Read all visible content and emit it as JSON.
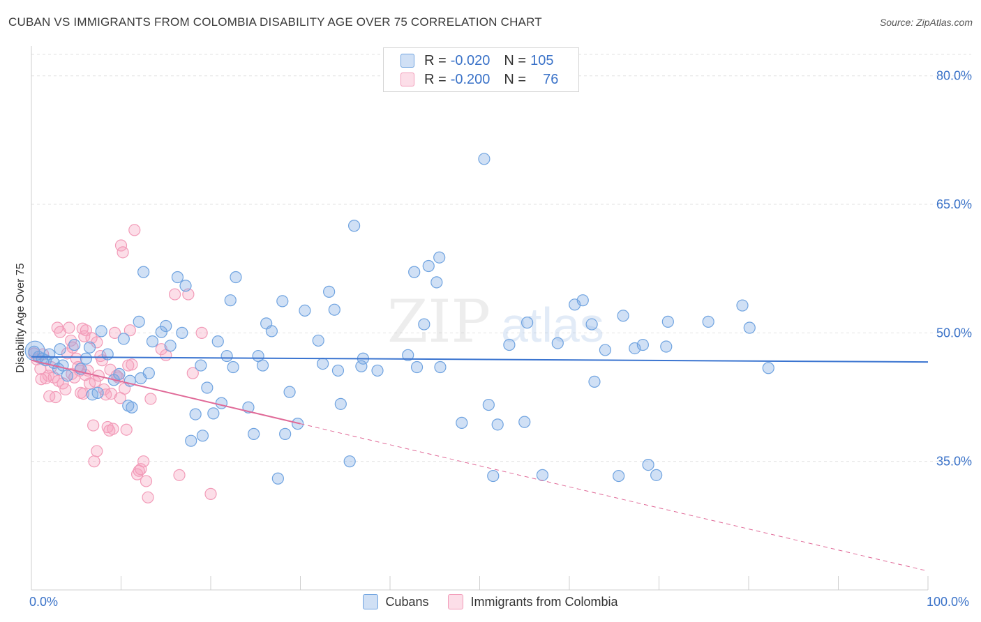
{
  "title": "CUBAN VS IMMIGRANTS FROM COLOMBIA DISABILITY AGE OVER 75 CORRELATION CHART",
  "source": "Source: ZipAtlas.com",
  "watermark": {
    "part1": "ZIP",
    "part2": "atlas"
  },
  "legend": {
    "rows": [
      {
        "r_label": "R =",
        "r_value": "-0.020",
        "n_label": "N =",
        "n_value": "105",
        "color": "#6fa3e0"
      },
      {
        "r_label": "R =",
        "r_value": "-0.200",
        "n_label": "N =",
        "n_value": "76",
        "color": "#f29bb8"
      }
    ]
  },
  "bottom_legend": {
    "cubans": "Cubans",
    "colombia": "Immigrants from Colombia"
  },
  "colors": {
    "blue_fill": "rgba(120,165,225,0.35)",
    "blue_stroke": "#6fa3e0",
    "blue_line": "#3a74d0",
    "pink_fill": "rgba(245,160,190,0.35)",
    "pink_stroke": "#f29bb8",
    "pink_line": "#e06a98",
    "tick_text": "#3a72c8"
  },
  "chart_data": {
    "type": "scatter",
    "title": "CUBAN VS IMMIGRANTS FROM COLOMBIA DISABILITY AGE OVER 75 CORRELATION CHART",
    "xlabel": "",
    "ylabel": "Disability Age Over 75",
    "xlim": [
      0,
      100
    ],
    "ylim": [
      20,
      82.5
    ],
    "x_tick_labels": [
      "0.0%",
      "100.0%"
    ],
    "y_ticks": [
      35,
      50,
      65,
      80
    ],
    "y_tick_labels": [
      "35.0%",
      "50.0%",
      "65.0%",
      "80.0%"
    ],
    "grid": true,
    "legend_position": "top-center",
    "series": [
      {
        "name": "Cubans",
        "color": "#6fa3e0",
        "trend": {
          "x": [
            0,
            100
          ],
          "y": [
            47.2,
            46.6
          ]
        },
        "points": [
          [
            0.3,
            47.8
          ],
          [
            0.8,
            47.2
          ],
          [
            1.2,
            47.0
          ],
          [
            1.6,
            46.8
          ],
          [
            2.0,
            47.5
          ],
          [
            2.5,
            46.5
          ],
          [
            3.0,
            45.8
          ],
          [
            3.5,
            46.2
          ],
          [
            4.0,
            45.0
          ],
          [
            4.8,
            48.6
          ],
          [
            5.5,
            45.8
          ],
          [
            6.1,
            47.0
          ],
          [
            6.8,
            42.8
          ],
          [
            7.4,
            43.0
          ],
          [
            7.8,
            50.2
          ],
          [
            8.5,
            47.5
          ],
          [
            9.2,
            44.5
          ],
          [
            9.8,
            45.2
          ],
          [
            10.3,
            49.3
          ],
          [
            11.0,
            44.4
          ],
          [
            10.8,
            41.5
          ],
          [
            11.2,
            41.3
          ],
          [
            12.0,
            51.3
          ],
          [
            12.2,
            44.7
          ],
          [
            12.5,
            57.1
          ],
          [
            13.1,
            45.3
          ],
          [
            13.5,
            49.0
          ],
          [
            14.5,
            50.1
          ],
          [
            15.0,
            50.8
          ],
          [
            15.5,
            48.5
          ],
          [
            16.3,
            56.5
          ],
          [
            16.8,
            50.0
          ],
          [
            17.2,
            55.5
          ],
          [
            17.8,
            37.4
          ],
          [
            18.3,
            40.5
          ],
          [
            18.9,
            46.2
          ],
          [
            19.6,
            43.6
          ],
          [
            20.3,
            40.6
          ],
          [
            20.8,
            49.0
          ],
          [
            21.2,
            41.8
          ],
          [
            21.8,
            47.3
          ],
          [
            22.2,
            53.8
          ],
          [
            22.5,
            46.0
          ],
          [
            22.8,
            56.5
          ],
          [
            24.2,
            41.3
          ],
          [
            24.8,
            38.2
          ],
          [
            25.3,
            47.3
          ],
          [
            25.8,
            46.2
          ],
          [
            26.2,
            51.1
          ],
          [
            26.8,
            50.2
          ],
          [
            27.5,
            33.0
          ],
          [
            28.0,
            53.7
          ],
          [
            28.3,
            38.2
          ],
          [
            28.8,
            43.1
          ],
          [
            29.7,
            39.4
          ],
          [
            30.5,
            52.6
          ],
          [
            32.0,
            49.1
          ],
          [
            32.5,
            46.4
          ],
          [
            33.2,
            54.8
          ],
          [
            33.8,
            52.7
          ],
          [
            34.2,
            45.6
          ],
          [
            34.5,
            41.7
          ],
          [
            35.5,
            35.0
          ],
          [
            36.0,
            62.5
          ],
          [
            36.8,
            46.1
          ],
          [
            37.0,
            47.0
          ],
          [
            38.6,
            45.6
          ],
          [
            42.0,
            47.4
          ],
          [
            42.7,
            57.1
          ],
          [
            43.0,
            46.0
          ],
          [
            43.8,
            51.0
          ],
          [
            44.3,
            57.8
          ],
          [
            45.5,
            58.8
          ],
          [
            45.2,
            55.9
          ],
          [
            45.6,
            46.0
          ],
          [
            48.0,
            39.5
          ],
          [
            50.5,
            70.3
          ],
          [
            51.0,
            41.6
          ],
          [
            51.5,
            33.3
          ],
          [
            52.0,
            39.3
          ],
          [
            53.3,
            48.6
          ],
          [
            55.0,
            39.6
          ],
          [
            57.0,
            33.4
          ],
          [
            58.7,
            48.8
          ],
          [
            60.6,
            53.3
          ],
          [
            61.5,
            53.8
          ],
          [
            62.5,
            51.0
          ],
          [
            62.8,
            44.3
          ],
          [
            64.0,
            48.0
          ],
          [
            65.5,
            33.3
          ],
          [
            66.0,
            52.0
          ],
          [
            67.3,
            48.2
          ],
          [
            68.2,
            48.6
          ],
          [
            68.8,
            34.6
          ],
          [
            69.7,
            33.4
          ],
          [
            70.8,
            48.4
          ],
          [
            71.0,
            51.3
          ],
          [
            75.5,
            51.3
          ],
          [
            79.3,
            53.2
          ],
          [
            80.1,
            50.6
          ],
          [
            82.2,
            45.9
          ],
          [
            55.3,
            51.2
          ],
          [
            19.1,
            38.0
          ],
          [
            3.2,
            48.1
          ],
          [
            6.5,
            48.3
          ]
        ]
      },
      {
        "name": "Immigrants from Colombia",
        "color": "#f29bb8",
        "trend": {
          "x": [
            0,
            30
          ],
          "y": [
            46.8,
            39.4
          ]
        },
        "trend_dashed": {
          "x": [
            30,
            100
          ],
          "y": [
            39.4,
            22.2
          ]
        },
        "points": [
          [
            0.3,
            47.6
          ],
          [
            0.6,
            46.9
          ],
          [
            1.0,
            45.8
          ],
          [
            1.3,
            47.5
          ],
          [
            1.6,
            44.7
          ],
          [
            1.9,
            45.0
          ],
          [
            2.2,
            46.0
          ],
          [
            2.5,
            44.8
          ],
          [
            2.7,
            42.5
          ],
          [
            2.9,
            50.6
          ],
          [
            3.2,
            50.1
          ],
          [
            3.5,
            44.1
          ],
          [
            3.8,
            43.4
          ],
          [
            4.0,
            47.6
          ],
          [
            4.2,
            50.6
          ],
          [
            4.4,
            49.1
          ],
          [
            4.6,
            48.3
          ],
          [
            4.8,
            44.8
          ],
          [
            5.0,
            47.0
          ],
          [
            5.2,
            46.0
          ],
          [
            5.4,
            45.6
          ],
          [
            5.5,
            43.0
          ],
          [
            5.7,
            50.5
          ],
          [
            5.9,
            49.6
          ],
          [
            6.1,
            50.3
          ],
          [
            6.3,
            45.6
          ],
          [
            6.5,
            44.1
          ],
          [
            6.7,
            49.4
          ],
          [
            6.9,
            39.2
          ],
          [
            7.1,
            44.3
          ],
          [
            7.3,
            48.9
          ],
          [
            7.5,
            45.0
          ],
          [
            7.7,
            47.3
          ],
          [
            7.9,
            46.8
          ],
          [
            8.1,
            43.4
          ],
          [
            8.3,
            42.8
          ],
          [
            8.5,
            39.0
          ],
          [
            8.7,
            38.6
          ],
          [
            8.9,
            42.9
          ],
          [
            9.1,
            38.8
          ],
          [
            9.3,
            50.0
          ],
          [
            9.5,
            45.0
          ],
          [
            9.7,
            44.8
          ],
          [
            10.0,
            60.2
          ],
          [
            10.2,
            59.4
          ],
          [
            10.4,
            43.5
          ],
          [
            10.6,
            38.7
          ],
          [
            10.8,
            46.2
          ],
          [
            11.0,
            50.3
          ],
          [
            11.2,
            46.3
          ],
          [
            11.5,
            62.0
          ],
          [
            11.8,
            33.5
          ],
          [
            12.0,
            33.9
          ],
          [
            12.2,
            34.1
          ],
          [
            12.5,
            35.0
          ],
          [
            12.8,
            32.7
          ],
          [
            13.0,
            30.8
          ],
          [
            13.3,
            42.3
          ],
          [
            14.5,
            48.1
          ],
          [
            15.0,
            47.4
          ],
          [
            16.0,
            54.5
          ],
          [
            16.5,
            33.4
          ],
          [
            17.5,
            54.5
          ],
          [
            18.0,
            45.3
          ],
          [
            19.0,
            50.0
          ],
          [
            20.0,
            31.2
          ],
          [
            7.3,
            36.2
          ],
          [
            7.0,
            35.0
          ],
          [
            3.0,
            44.4
          ],
          [
            4.5,
            45.2
          ],
          [
            5.8,
            42.9
          ],
          [
            8.8,
            45.7
          ],
          [
            9.9,
            42.4
          ],
          [
            2.0,
            42.6
          ],
          [
            6.0,
            45.1
          ],
          [
            1.1,
            44.6
          ]
        ]
      }
    ]
  }
}
